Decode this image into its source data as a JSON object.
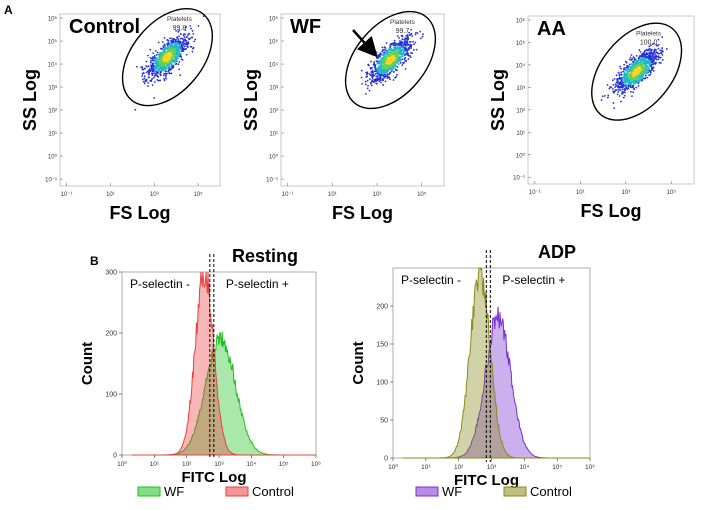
{
  "panel_a_label": "A",
  "panel_b_label": "B",
  "scatter_tick_labels": [
    "10⁻¹",
    "10¹",
    "10³",
    "10⁵"
  ],
  "scatter_y_ticks": [
    "10⁶",
    "10⁵",
    "10⁴",
    "10³",
    "10²",
    "10¹",
    "10⁰",
    "10⁻¹"
  ],
  "hist_x_ticks": [
    "10⁰",
    "10¹",
    "10²",
    "10³",
    "10⁴",
    "10⁵",
    "10⁶"
  ],
  "chart_data": [
    {
      "type": "scatter",
      "title": "Control",
      "xlabel": "FS Log",
      "ylabel": "SS Log",
      "x_scale": "log",
      "y_scale": "log",
      "xlim": [
        0.05,
        1000000
      ],
      "ylim": [
        0.05,
        1500000
      ],
      "gate": {
        "label": "Platelets",
        "value": "99.8"
      },
      "cluster_center": {
        "x": 4000,
        "y": 20000
      }
    },
    {
      "type": "scatter",
      "title": "WF",
      "xlabel": "FS Log",
      "ylabel": "SS Log",
      "x_scale": "log",
      "y_scale": "log",
      "xlim": [
        0.05,
        1000000
      ],
      "ylim": [
        0.05,
        1500000
      ],
      "gate": {
        "label": "Platelets",
        "value": "99.7"
      },
      "cluster_center": {
        "x": 4000,
        "y": 15000
      },
      "annotation": "arrow"
    },
    {
      "type": "scatter",
      "title": "AA",
      "xlabel": "FS Log",
      "ylabel": "SS Log",
      "x_scale": "log",
      "y_scale": "log",
      "xlim": [
        0.05,
        1000000
      ],
      "ylim": [
        0.05,
        1500000
      ],
      "gate": {
        "label": "Platelets",
        "value": "100.0"
      },
      "cluster_center": {
        "x": 3000,
        "y": 5000
      }
    },
    {
      "type": "area",
      "title": "Resting",
      "xlabel": "FITC Log",
      "ylabel": "Count",
      "x_scale": "log",
      "xlim": [
        1,
        1000000
      ],
      "ylim": [
        0,
        300
      ],
      "yticks": [
        0,
        100,
        200,
        300
      ],
      "gate_labels": [
        "P-selectin -",
        "P-selectin +"
      ],
      "gate_x": 600,
      "series": [
        {
          "name": "WF",
          "color": "#1fbf1f",
          "peak_log10": 3.05,
          "width_log10": 0.45,
          "peak": 195
        },
        {
          "name": "Control",
          "color": "#e8413f",
          "peak_log10": 2.55,
          "width_log10": 0.28,
          "peak": 300
        }
      ]
    },
    {
      "type": "area",
      "title": "ADP",
      "xlabel": "FITC Log",
      "ylabel": "Count",
      "x_scale": "log",
      "xlim": [
        1,
        1000000
      ],
      "ylim": [
        0,
        250
      ],
      "yticks": [
        0,
        50,
        100,
        150,
        200
      ],
      "gate_labels": [
        "P-selectin -",
        "P-selectin +"
      ],
      "gate_x": 800,
      "series": [
        {
          "name": "WF",
          "color": "#7a2fcf",
          "peak_log10": 3.2,
          "width_log10": 0.38,
          "peak": 185
        },
        {
          "name": "Control",
          "color": "#8a8a1a",
          "peak_log10": 2.65,
          "width_log10": 0.3,
          "peak": 245
        }
      ]
    }
  ]
}
